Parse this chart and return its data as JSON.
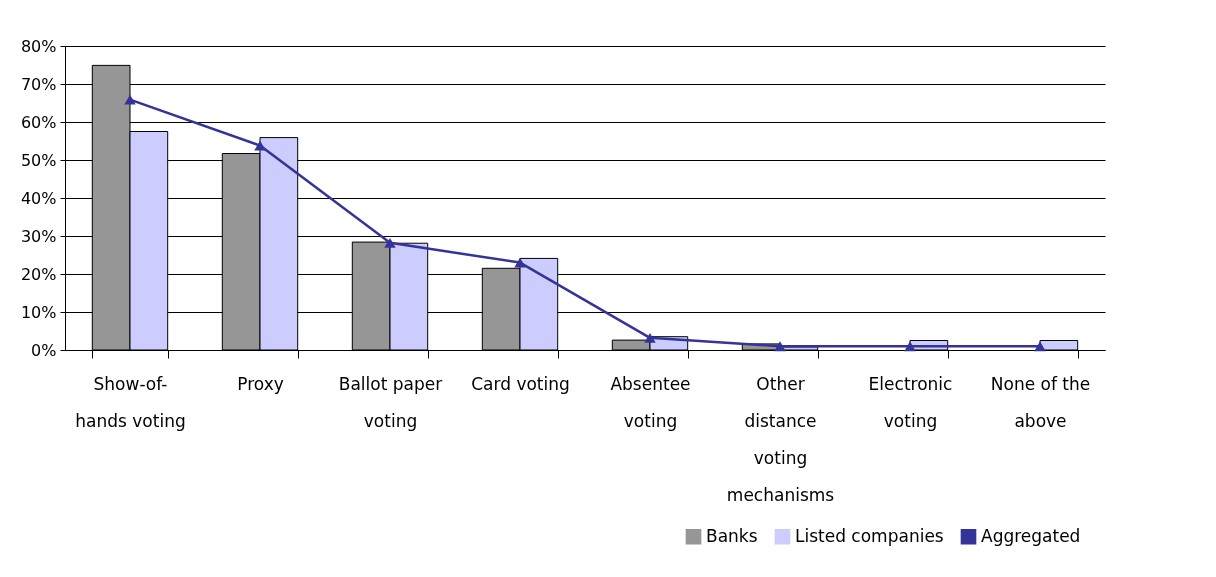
{
  "chart_data": {
    "type": "bar",
    "categories": [
      "Show-of-hands voting",
      "Proxy",
      "Ballot paper voting",
      "Card voting",
      "Absentee voting",
      "Other distance voting mechanisms",
      "Electronic voting",
      "None of the above"
    ],
    "series": [
      {
        "name": "Banks",
        "color": "#969696",
        "values": [
          74.9,
          51.7,
          28.4,
          21.5,
          2.6,
          1.6,
          null,
          null
        ]
      },
      {
        "name": "Listed companies",
        "color": "#ccccff",
        "values": [
          57.5,
          55.9,
          28.1,
          24.1,
          3.5,
          0.8,
          2.5,
          2.5
        ]
      },
      {
        "name": "Aggregated",
        "type": "line",
        "color": "#333399",
        "values": [
          65.9,
          53.8,
          28.2,
          23.0,
          3.2,
          1.0,
          1.0,
          1.0
        ]
      }
    ],
    "ylim": [
      0,
      80
    ],
    "yticks": [
      {
        "value": 0,
        "label": "0%"
      },
      {
        "value": 10,
        "label": "10%"
      },
      {
        "value": 20,
        "label": "20%"
      },
      {
        "value": 30,
        "label": "30%"
      },
      {
        "value": 40,
        "label": "40%"
      },
      {
        "value": 50,
        "label": "50%"
      },
      {
        "value": 60,
        "label": "60%"
      },
      {
        "value": 70,
        "label": "70%"
      },
      {
        "value": 80,
        "label": "80%"
      }
    ],
    "grid": "y",
    "legend": "bottom right",
    "marker": "triangle",
    "line_style": "solid"
  }
}
